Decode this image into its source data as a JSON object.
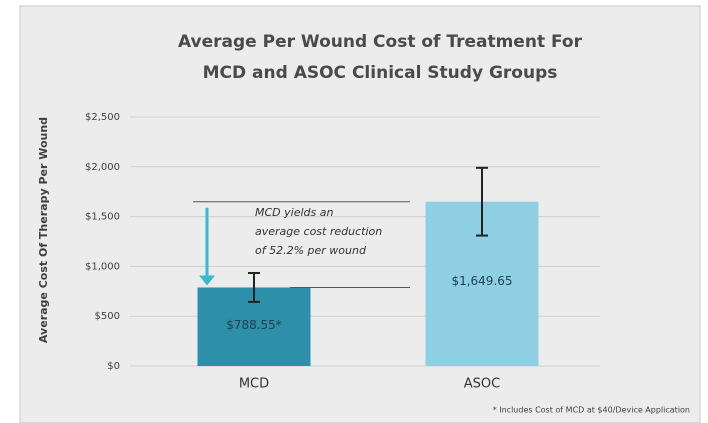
{
  "chart_data": {
    "type": "bar",
    "title_lines": [
      "Average Per Wound Cost of Treatment For",
      "MCD and ASOC Clinical Study Groups"
    ],
    "y_label": "Average Cost Of Therapy Per Wound",
    "categories": [
      "MCD",
      "ASOC"
    ],
    "values": [
      788.55,
      1649.65
    ],
    "errors": [
      145,
      340
    ],
    "value_labels": [
      "$788.55*",
      "$1,649.65"
    ],
    "colors": [
      "#2e8fa8",
      "#8ecfe3"
    ],
    "ylim": [
      0,
      2500
    ],
    "yticks": [
      {
        "value": 0,
        "label": "$0"
      },
      {
        "value": 500,
        "label": "$500"
      },
      {
        "value": 1000,
        "label": "$1,000"
      },
      {
        "value": 1500,
        "label": "$1,500"
      },
      {
        "value": 2000,
        "label": "$2,000"
      },
      {
        "value": 2500,
        "label": "$2,500"
      }
    ],
    "grid": true,
    "annotation_lines": [
      "MCD yields an",
      "average cost reduction",
      "of 52.2% per wound"
    ],
    "footnote": "* Includes Cost of MCD at $40/Device Application"
  }
}
